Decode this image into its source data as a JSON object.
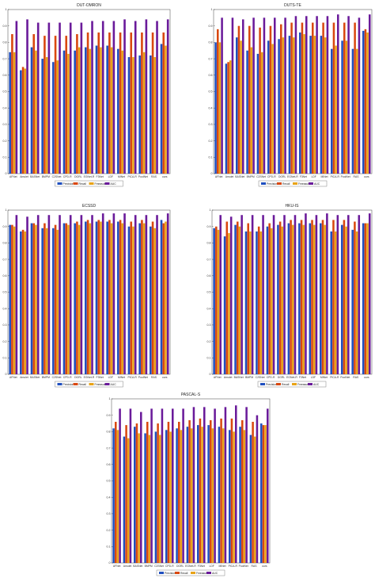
{
  "chart_data": [
    {
      "type": "bar",
      "title": "DUT-OMRON",
      "categories": [
        "AFNet",
        "Amulet",
        "BASNet",
        "BMPM",
        "C2SNet",
        "CPD-R",
        "DGRL",
        "EGNet-R",
        "F3Net",
        "LDF",
        "MINet",
        "PiCA-R",
        "PoolNet",
        "RAS",
        "ours"
      ],
      "ylim": [
        0,
        1
      ],
      "yticks": [
        "0",
        "0.1",
        "0.2",
        "0.3",
        "0.4",
        "0.5",
        "0.6",
        "0.7",
        "0.8",
        "0.9",
        "1"
      ],
      "legend": "bottom",
      "series": [
        {
          "name": "Precision",
          "color": "#1f4fbf",
          "values": [
            0.74,
            0.63,
            0.77,
            0.7,
            0.68,
            0.75,
            0.75,
            0.77,
            0.78,
            0.78,
            0.76,
            0.71,
            0.72,
            0.72,
            0.79
          ]
        },
        {
          "name": "Recall",
          "color": "#d9480f",
          "values": [
            0.85,
            0.65,
            0.85,
            0.84,
            0.84,
            0.84,
            0.85,
            0.86,
            0.86,
            0.86,
            0.86,
            0.86,
            0.86,
            0.86,
            0.86
          ]
        },
        {
          "name": "Fmeasure",
          "color": "#e8a317",
          "values": [
            0.74,
            0.64,
            0.75,
            0.71,
            0.69,
            0.73,
            0.77,
            0.76,
            0.77,
            0.77,
            0.75,
            0.71,
            0.74,
            0.71,
            0.78
          ]
        },
        {
          "name": "AUC",
          "color": "#6a1a9a",
          "values": [
            0.93,
            0.94,
            0.92,
            0.92,
            0.92,
            0.92,
            0.92,
            0.93,
            0.93,
            0.93,
            0.94,
            0.93,
            0.94,
            0.93,
            0.94
          ]
        }
      ]
    },
    {
      "type": "bar",
      "title": "DUTS-TE",
      "categories": [
        "AFNet",
        "Amulet",
        "BASNet",
        "BMPM",
        "C2SNet",
        "CPD-R",
        "DGRL",
        "EGNet-R",
        "F3Net",
        "LDF",
        "MINet",
        "PiCA-R",
        "PoolNet",
        "RAS",
        "ours"
      ],
      "ylim": [
        0,
        1
      ],
      "yticks": [
        "0",
        "0.1",
        "0.2",
        "0.3",
        "0.4",
        "0.5",
        "0.6",
        "0.7",
        "0.8",
        "0.9",
        "1"
      ],
      "legend": "bottom",
      "series": [
        {
          "name": "Precision",
          "color": "#1f4fbf",
          "values": [
            0.8,
            0.67,
            0.83,
            0.75,
            0.73,
            0.81,
            0.82,
            0.84,
            0.86,
            0.84,
            0.84,
            0.76,
            0.81,
            0.76,
            0.87
          ]
        },
        {
          "name": "Recall",
          "color": "#d9480f",
          "values": [
            0.88,
            0.68,
            0.9,
            0.9,
            0.89,
            0.9,
            0.91,
            0.92,
            0.92,
            0.92,
            0.92,
            0.92,
            0.92,
            0.92,
            0.88
          ]
        },
        {
          "name": "Fmeasure",
          "color": "#e8a317",
          "values": [
            0.8,
            0.69,
            0.81,
            0.77,
            0.74,
            0.79,
            0.83,
            0.83,
            0.85,
            0.84,
            0.83,
            0.78,
            0.81,
            0.76,
            0.86
          ]
        },
        {
          "name": "AUC",
          "color": "#6a1a9a",
          "values": [
            0.95,
            0.95,
            0.94,
            0.95,
            0.95,
            0.95,
            0.95,
            0.96,
            0.96,
            0.96,
            0.96,
            0.97,
            0.96,
            0.95,
            0.97
          ]
        }
      ]
    },
    {
      "type": "bar",
      "title": "ECSSD",
      "categories": [
        "AFNet",
        "Amulet",
        "BASNet",
        "BMPM",
        "C2SNet",
        "CPD-R",
        "DGRL",
        "EGNet-R",
        "F3Net",
        "LDF",
        "MINet",
        "PiCA-R",
        "PoolNet",
        "RAS",
        "ours"
      ],
      "ylim": [
        0,
        1
      ],
      "yticks": [
        "0",
        "0.1",
        "0.2",
        "0.3",
        "0.4",
        "0.5",
        "0.6",
        "0.7",
        "0.8",
        "0.9",
        "1"
      ],
      "legend": "bottom",
      "series": [
        {
          "name": "Precision",
          "color": "#1f4fbf",
          "values": [
            0.91,
            0.87,
            0.92,
            0.89,
            0.89,
            0.92,
            0.92,
            0.93,
            0.93,
            0.93,
            0.93,
            0.9,
            0.92,
            0.9,
            0.94
          ]
        },
        {
          "name": "Recall",
          "color": "#d9480f",
          "values": [
            0.91,
            0.88,
            0.92,
            0.92,
            0.91,
            0.92,
            0.93,
            0.94,
            0.94,
            0.94,
            0.94,
            0.93,
            0.94,
            0.93,
            0.92
          ]
        },
        {
          "name": "Fmeasure",
          "color": "#e8a317",
          "values": [
            0.9,
            0.87,
            0.91,
            0.89,
            0.88,
            0.91,
            0.91,
            0.92,
            0.93,
            0.92,
            0.92,
            0.9,
            0.92,
            0.89,
            0.93
          ]
        },
        {
          "name": "AUC",
          "color": "#6a1a9a",
          "values": [
            0.97,
            0.96,
            0.97,
            0.97,
            0.97,
            0.97,
            0.97,
            0.97,
            0.98,
            0.98,
            0.98,
            0.97,
            0.97,
            0.97,
            0.98
          ]
        }
      ]
    },
    {
      "type": "bar",
      "title": "HKU-IS",
      "categories": [
        "AFNet",
        "Amulet",
        "BASNet",
        "BMPM",
        "C2SNet",
        "CPD-R",
        "DGRL",
        "EGNet-R",
        "F3Net",
        "LDF",
        "MINet",
        "PiCA-R",
        "PoolNet",
        "RAS",
        "ours"
      ],
      "ylim": [
        0,
        1
      ],
      "yticks": [
        "0",
        "0.1",
        "0.2",
        "0.3",
        "0.4",
        "0.5",
        "0.6",
        "0.7",
        "0.8",
        "0.9",
        "1"
      ],
      "legend": "bottom",
      "series": [
        {
          "name": "Precision",
          "color": "#1f4fbf",
          "values": [
            0.89,
            0.84,
            0.91,
            0.87,
            0.87,
            0.9,
            0.91,
            0.92,
            0.92,
            0.92,
            0.92,
            0.87,
            0.91,
            0.88,
            0.92
          ]
        },
        {
          "name": "Recall",
          "color": "#d9480f",
          "values": [
            0.9,
            0.93,
            0.93,
            0.92,
            0.9,
            0.92,
            0.93,
            0.94,
            0.94,
            0.94,
            0.94,
            0.94,
            0.94,
            0.93,
            0.92
          ]
        },
        {
          "name": "Fmeasure",
          "color": "#e8a317",
          "values": [
            0.88,
            0.86,
            0.9,
            0.87,
            0.87,
            0.89,
            0.9,
            0.91,
            0.91,
            0.91,
            0.91,
            0.87,
            0.9,
            0.87,
            0.92
          ]
        },
        {
          "name": "AUC",
          "color": "#6a1a9a",
          "values": [
            0.97,
            0.96,
            0.97,
            0.97,
            0.97,
            0.97,
            0.97,
            0.97,
            0.98,
            0.97,
            0.98,
            0.97,
            0.97,
            0.97,
            0.98
          ]
        }
      ]
    },
    {
      "type": "bar",
      "title": "PASCAL-S",
      "categories": [
        "AFNet",
        "Amulet",
        "BASNet",
        "BMPM",
        "C2SNet",
        "CPD-R",
        "DGRL",
        "EGNet-R",
        "F3Net",
        "LDF",
        "MINet",
        "PiCA-R",
        "PoolNet",
        "RAS",
        "ours"
      ],
      "ylim": [
        0,
        1
      ],
      "yticks": [
        "0",
        "0.1",
        "0.2",
        "0.3",
        "0.4",
        "0.5",
        "0.6",
        "0.7",
        "0.8",
        "0.9",
        "1"
      ],
      "legend": "bottom",
      "series": [
        {
          "name": "Precision",
          "color": "#1f4fbf",
          "values": [
            0.82,
            0.77,
            0.83,
            0.79,
            0.8,
            0.81,
            0.82,
            0.83,
            0.84,
            0.84,
            0.83,
            0.81,
            0.83,
            0.78,
            0.85
          ]
        },
        {
          "name": "Recall",
          "color": "#d9480f",
          "values": [
            0.86,
            0.84,
            0.85,
            0.86,
            0.85,
            0.86,
            0.86,
            0.87,
            0.88,
            0.87,
            0.88,
            0.88,
            0.87,
            0.86,
            0.84
          ]
        },
        {
          "name": "Fmeasure",
          "color": "#e8a317",
          "values": [
            0.81,
            0.76,
            0.79,
            0.78,
            0.78,
            0.8,
            0.81,
            0.82,
            0.83,
            0.82,
            0.82,
            0.8,
            0.81,
            0.77,
            0.84
          ]
        },
        {
          "name": "AUC",
          "color": "#6a1a9a",
          "values": [
            0.94,
            0.94,
            0.92,
            0.94,
            0.94,
            0.94,
            0.94,
            0.95,
            0.95,
            0.94,
            0.95,
            0.96,
            0.95,
            0.9,
            0.94
          ]
        }
      ]
    }
  ]
}
